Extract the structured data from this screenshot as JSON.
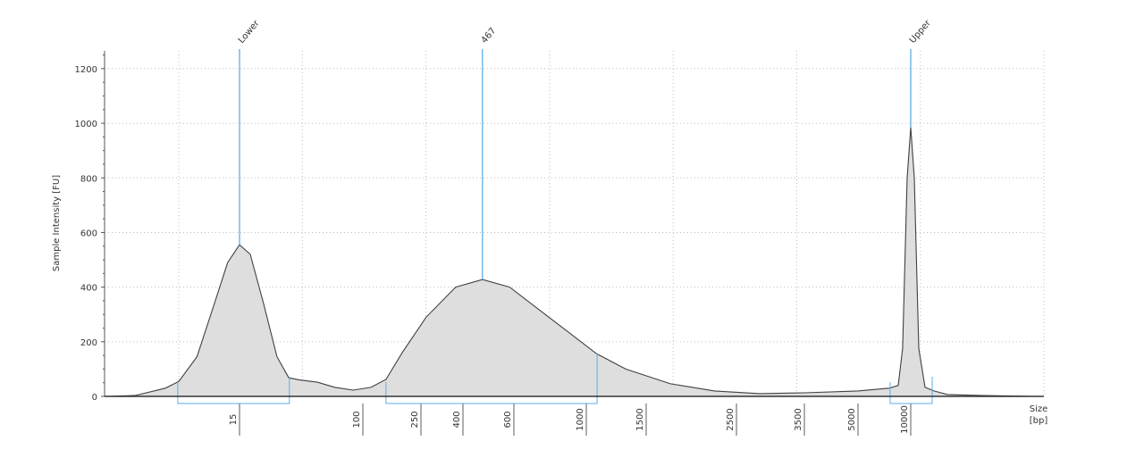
{
  "chart_data": {
    "type": "area",
    "title": "",
    "ylabel": "Sample Intensity [FU]",
    "xlabel": "Size [bp]",
    "xlabel_lines": [
      "Size",
      "[bp]"
    ],
    "ylim": [
      0,
      1265
    ],
    "yticks": [
      0,
      200,
      400,
      600,
      800,
      1000,
      1200
    ],
    "xscale": "nonlinear (sizing ladder)",
    "xticks": [
      15,
      100,
      250,
      400,
      600,
      1000,
      1500,
      2500,
      3500,
      5000,
      10000
    ],
    "grid": true,
    "colors": {
      "trace": "#404040",
      "fill": "#dedede",
      "marker": "#5aaee8",
      "grid": "#bdbdbd"
    },
    "trace": [
      [
        2,
        0
      ],
      [
        3,
        3
      ],
      [
        4.8,
        30
      ],
      [
        5.9,
        55
      ],
      [
        7.8,
        145
      ],
      [
        10.2,
        340
      ],
      [
        12.5,
        490
      ],
      [
        15,
        555
      ],
      [
        17.7,
        520
      ],
      [
        21.7,
        340
      ],
      [
        26.7,
        145
      ],
      [
        32,
        68
      ],
      [
        37.7,
        60
      ],
      [
        49.6,
        52
      ],
      [
        65,
        33
      ],
      [
        86,
        23
      ],
      [
        113.5,
        33
      ],
      [
        144,
        62
      ],
      [
        186,
        160
      ],
      [
        265,
        290
      ],
      [
        369,
        400
      ],
      [
        467,
        428
      ],
      [
        580,
        400
      ],
      [
        748,
        300
      ],
      [
        1070,
        157
      ],
      [
        1306,
        100
      ],
      [
        1720,
        46
      ],
      [
        2208,
        20
      ],
      [
        2805,
        10
      ],
      [
        3500,
        13
      ],
      [
        5000,
        20
      ],
      [
        7540,
        30
      ],
      [
        8480,
        40
      ],
      [
        8990,
        175
      ],
      [
        9540,
        800
      ],
      [
        10000,
        985
      ],
      [
        10480,
        800
      ],
      [
        11110,
        175
      ],
      [
        12070,
        33
      ],
      [
        13570,
        20
      ],
      [
        16190,
        7
      ],
      [
        25900,
        3
      ],
      [
        49400,
        0
      ]
    ],
    "peaks": [
      {
        "label": "Lower",
        "size": 15,
        "intensity": 555
      },
      {
        "label": "467",
        "size": 467,
        "intensity": 428
      },
      {
        "label": "Upper",
        "size": 10000,
        "intensity": 985
      }
    ],
    "regions": [
      {
        "from": 5.8,
        "to": 32.3
      },
      {
        "from": 144,
        "to": 1076
      },
      {
        "from": 7630,
        "to": 13260
      }
    ]
  }
}
